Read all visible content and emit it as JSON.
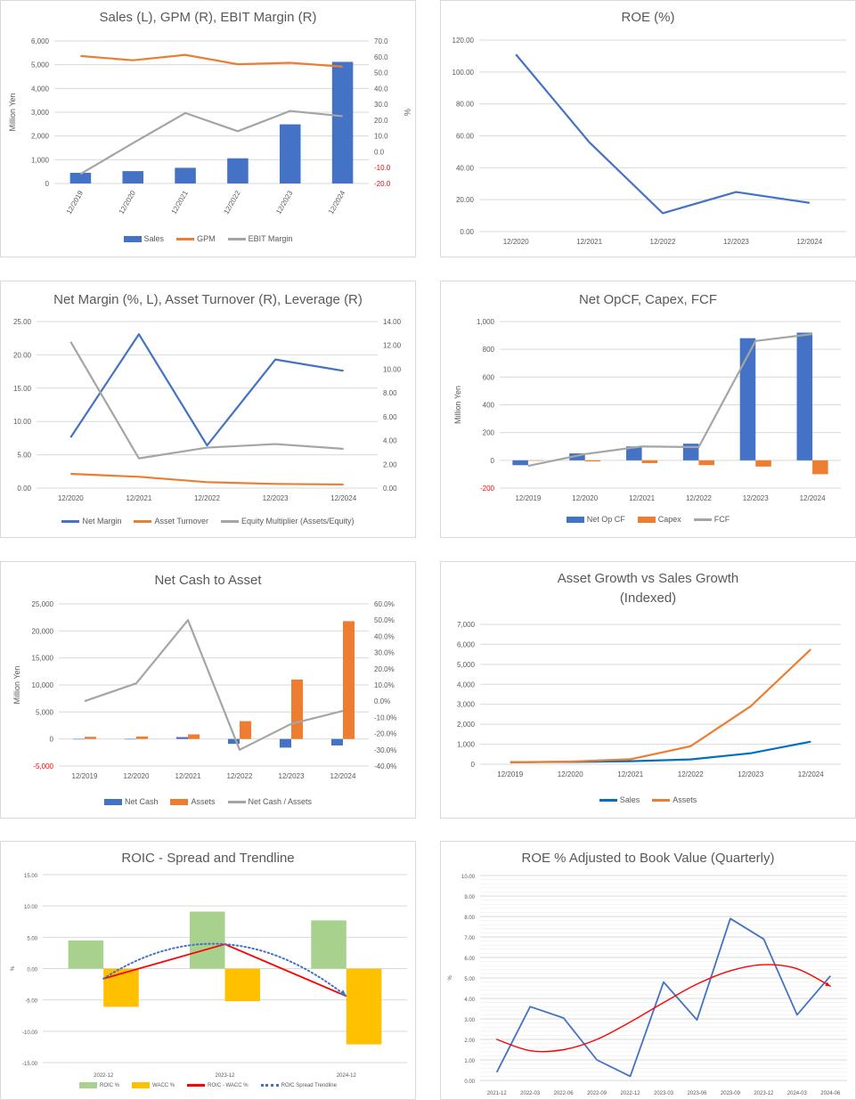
{
  "chart_data": [
    {
      "type": "bar",
      "title": "Sales (L), GPM (R), EBIT Margin (R)",
      "ylabel": "Million Yen",
      "ylabel_right": "%",
      "categories": [
        "12/2019",
        "12/2020",
        "12/2021",
        "12/2022",
        "12/2023",
        "12/2024"
      ],
      "yticks": [
        "0",
        "1,000",
        "2,000",
        "3,000",
        "4,000",
        "5,000",
        "6,000"
      ],
      "yticks_right": [
        "-20.0",
        "-10.0",
        "0.0",
        "10.0",
        "20.0",
        "30.0",
        "40.0",
        "50.0",
        "60.0",
        "70.0"
      ],
      "negative_tick_color": "#ff0000",
      "x_labels_rotated": true,
      "legend": "bottom",
      "series": [
        {
          "name": "Sales",
          "kind": "bar",
          "axis": "left",
          "color": "#4472c4",
          "values": [
            450,
            520,
            660,
            1060,
            2490,
            5120
          ]
        },
        {
          "name": "GPM",
          "kind": "line",
          "axis": "right",
          "color": "#ed7d31",
          "values": [
            60.5,
            57.8,
            61.2,
            55.3,
            56.2,
            53.8
          ]
        },
        {
          "name": "EBIT Margin",
          "kind": "line",
          "axis": "right",
          "color": "#a5a5a5",
          "values": [
            -14.0,
            5.5,
            24.5,
            13.0,
            25.8,
            22.5
          ]
        }
      ]
    },
    {
      "type": "line",
      "title": "ROE (%)",
      "categories": [
        "12/2020",
        "12/2021",
        "12/2022",
        "12/2023",
        "12/2024"
      ],
      "yticks": [
        "0.00",
        "20.00",
        "40.00",
        "60.00",
        "80.00",
        "100.00",
        "120.00"
      ],
      "series": [
        {
          "kind": "line",
          "axis": "left",
          "color": "#4472c4",
          "values": [
            111.0,
            56.0,
            11.5,
            24.8,
            18.0
          ]
        }
      ]
    },
    {
      "type": "line",
      "title": "Net Margin (%, L), Asset Turnover (R), Leverage (R)",
      "categories": [
        "12/2020",
        "12/2021",
        "12/2022",
        "12/2023",
        "12/2024"
      ],
      "yticks": [
        "0.00",
        "5.00",
        "10.00",
        "15.00",
        "20.00",
        "25.00"
      ],
      "yticks_right": [
        "0.00",
        "2.00",
        "4.00",
        "6.00",
        "8.00",
        "10.00",
        "12.00",
        "14.00"
      ],
      "legend": "bottom",
      "series": [
        {
          "name": "Net Margin",
          "kind": "line",
          "axis": "left",
          "color": "#4472c4",
          "values": [
            7.6,
            23.1,
            6.4,
            19.3,
            17.6
          ]
        },
        {
          "name": "Asset Turnover",
          "kind": "line",
          "axis": "right",
          "color": "#ed7d31",
          "values": [
            1.2,
            0.95,
            0.5,
            0.35,
            0.3
          ]
        },
        {
          "name": "Equity Multiplier (Assets/Equity)",
          "kind": "line",
          "axis": "right",
          "color": "#a5a5a5",
          "values": [
            12.3,
            2.5,
            3.4,
            3.7,
            3.3
          ]
        }
      ]
    },
    {
      "type": "bar",
      "title": "Net OpCF, Capex, FCF",
      "ylabel": "Million Yen",
      "categories": [
        "12/2019",
        "12/2020",
        "12/2021",
        "12/2022",
        "12/2023",
        "12/2024"
      ],
      "yticks": [
        "-200",
        "0",
        "200",
        "400",
        "600",
        "800",
        "1,000"
      ],
      "negative_tick_color": "#ff0000",
      "legend": "bottom",
      "series": [
        {
          "name": "Net Op CF",
          "kind": "bar",
          "axis": "left",
          "color": "#4472c4",
          "values": [
            -35,
            50,
            100,
            120,
            880,
            920
          ]
        },
        {
          "name": "Capex",
          "kind": "bar",
          "axis": "left",
          "color": "#ed7d31",
          "values": [
            0,
            -8,
            -20,
            -35,
            -45,
            -100
          ]
        },
        {
          "name": "FCF",
          "kind": "line",
          "axis": "left",
          "color": "#a5a5a5",
          "values": [
            -40,
            45,
            100,
            95,
            860,
            910
          ]
        }
      ]
    },
    {
      "type": "bar",
      "title": "Net Cash to Asset",
      "ylabel": "Million Yen",
      "categories": [
        "12/2019",
        "12/2020",
        "12/2021",
        "12/2022",
        "12/2023",
        "12/2024"
      ],
      "yticks": [
        "-5,000",
        "0",
        "5,000",
        "10,000",
        "15,000",
        "20,000",
        "25,000"
      ],
      "yticks_right": [
        "-40.0%",
        "-30.0%",
        "-20.0%",
        "-10.0%",
        "0.0%",
        "10.0%",
        "20.0%",
        "30.0%",
        "40.0%",
        "50.0%",
        "60.0%"
      ],
      "negative_tick_color": "#ff0000",
      "legend": "bottom",
      "series": [
        {
          "name": "Net Cash",
          "kind": "bar",
          "axis": "left",
          "color": "#4472c4",
          "values": [
            0,
            0,
            350,
            -900,
            -1600,
            -1200
          ]
        },
        {
          "name": "Assets",
          "kind": "bar",
          "axis": "left",
          "color": "#ed7d31",
          "values": [
            400,
            450,
            850,
            3300,
            11000,
            21800
          ]
        },
        {
          "name": "Net Cash / Assets",
          "kind": "line",
          "axis": "right",
          "color": "#a5a5a5",
          "values": [
            0.0,
            11.0,
            50.0,
            -30.0,
            -14.0,
            -6.0
          ]
        }
      ]
    },
    {
      "type": "line",
      "title": "Asset Growth vs Sales Growth\n(Indexed)",
      "categories": [
        "12/2019",
        "12/2020",
        "12/2021",
        "12/2022",
        "12/2023",
        "12/2024"
      ],
      "yticks": [
        "0",
        "1,000",
        "2,000",
        "3,000",
        "4,000",
        "5,000",
        "6,000",
        "7,000"
      ],
      "legend": "bottom",
      "series": [
        {
          "name": "Sales",
          "kind": "line",
          "axis": "left",
          "color": "#0070c0",
          "values": [
            100,
            115,
            150,
            240,
            550,
            1130
          ]
        },
        {
          "name": "Assets",
          "kind": "line",
          "axis": "left",
          "color": "#ed7d31",
          "values": [
            100,
            130,
            250,
            900,
            2900,
            5750
          ]
        }
      ]
    },
    {
      "type": "bar",
      "title": "ROIC - Spread and Trendline",
      "ylabel": "%",
      "categories": [
        "2022-12",
        "2023-12",
        "2024-12"
      ],
      "yticks": [
        "-15.00",
        "-10.00",
        "-5.00",
        "0.00",
        "5.00",
        "10.00",
        "15.00"
      ],
      "legend": "bottom",
      "series": [
        {
          "name": "ROIC %",
          "kind": "bar",
          "axis": "left",
          "color": "#a9d18e",
          "values": [
            4.5,
            9.1,
            7.7
          ]
        },
        {
          "name": "WACC %",
          "kind": "bar",
          "axis": "left",
          "color": "#ffc000",
          "values": [
            -6.1,
            -5.2,
            -12.1
          ]
        },
        {
          "name": "ROIC - WACC %",
          "kind": "line",
          "axis": "left",
          "color": "#ff0000",
          "values": [
            -1.6,
            3.9,
            -4.4
          ]
        },
        {
          "name": "ROIC Spread Trendline",
          "kind": "trend",
          "axis": "left",
          "color": "#4472c4",
          "values": [
            -1.6,
            3.9,
            -4.4
          ]
        }
      ]
    },
    {
      "type": "line",
      "title": "ROE % Adjusted to Book Value (Quarterly)",
      "ylabel": "%",
      "categories": [
        "2021-12",
        "2022-03",
        "2022-06",
        "2022-09",
        "2022-12",
        "2023-03",
        "2023-06",
        "2023-09",
        "2023-12",
        "2024-03",
        "2024-06"
      ],
      "yticks": [
        "0.00",
        "1.00",
        "2.00",
        "3.00",
        "4.00",
        "5.00",
        "6.00",
        "7.00",
        "8.00",
        "9.00",
        "10.00"
      ],
      "minor_gridlines": true,
      "series": [
        {
          "kind": "line",
          "axis": "left",
          "color": "#4472c4",
          "values": [
            0.4,
            3.6,
            3.05,
            1.0,
            0.2,
            4.8,
            2.95,
            7.9,
            6.9,
            3.2,
            5.1
          ]
        },
        {
          "kind": "trend",
          "axis": "left",
          "color": "#ff0000",
          "values": [
            2.0,
            1.45,
            1.5,
            2.0,
            2.85,
            3.8,
            4.7,
            5.35,
            5.65,
            5.45,
            4.6
          ]
        }
      ]
    }
  ]
}
